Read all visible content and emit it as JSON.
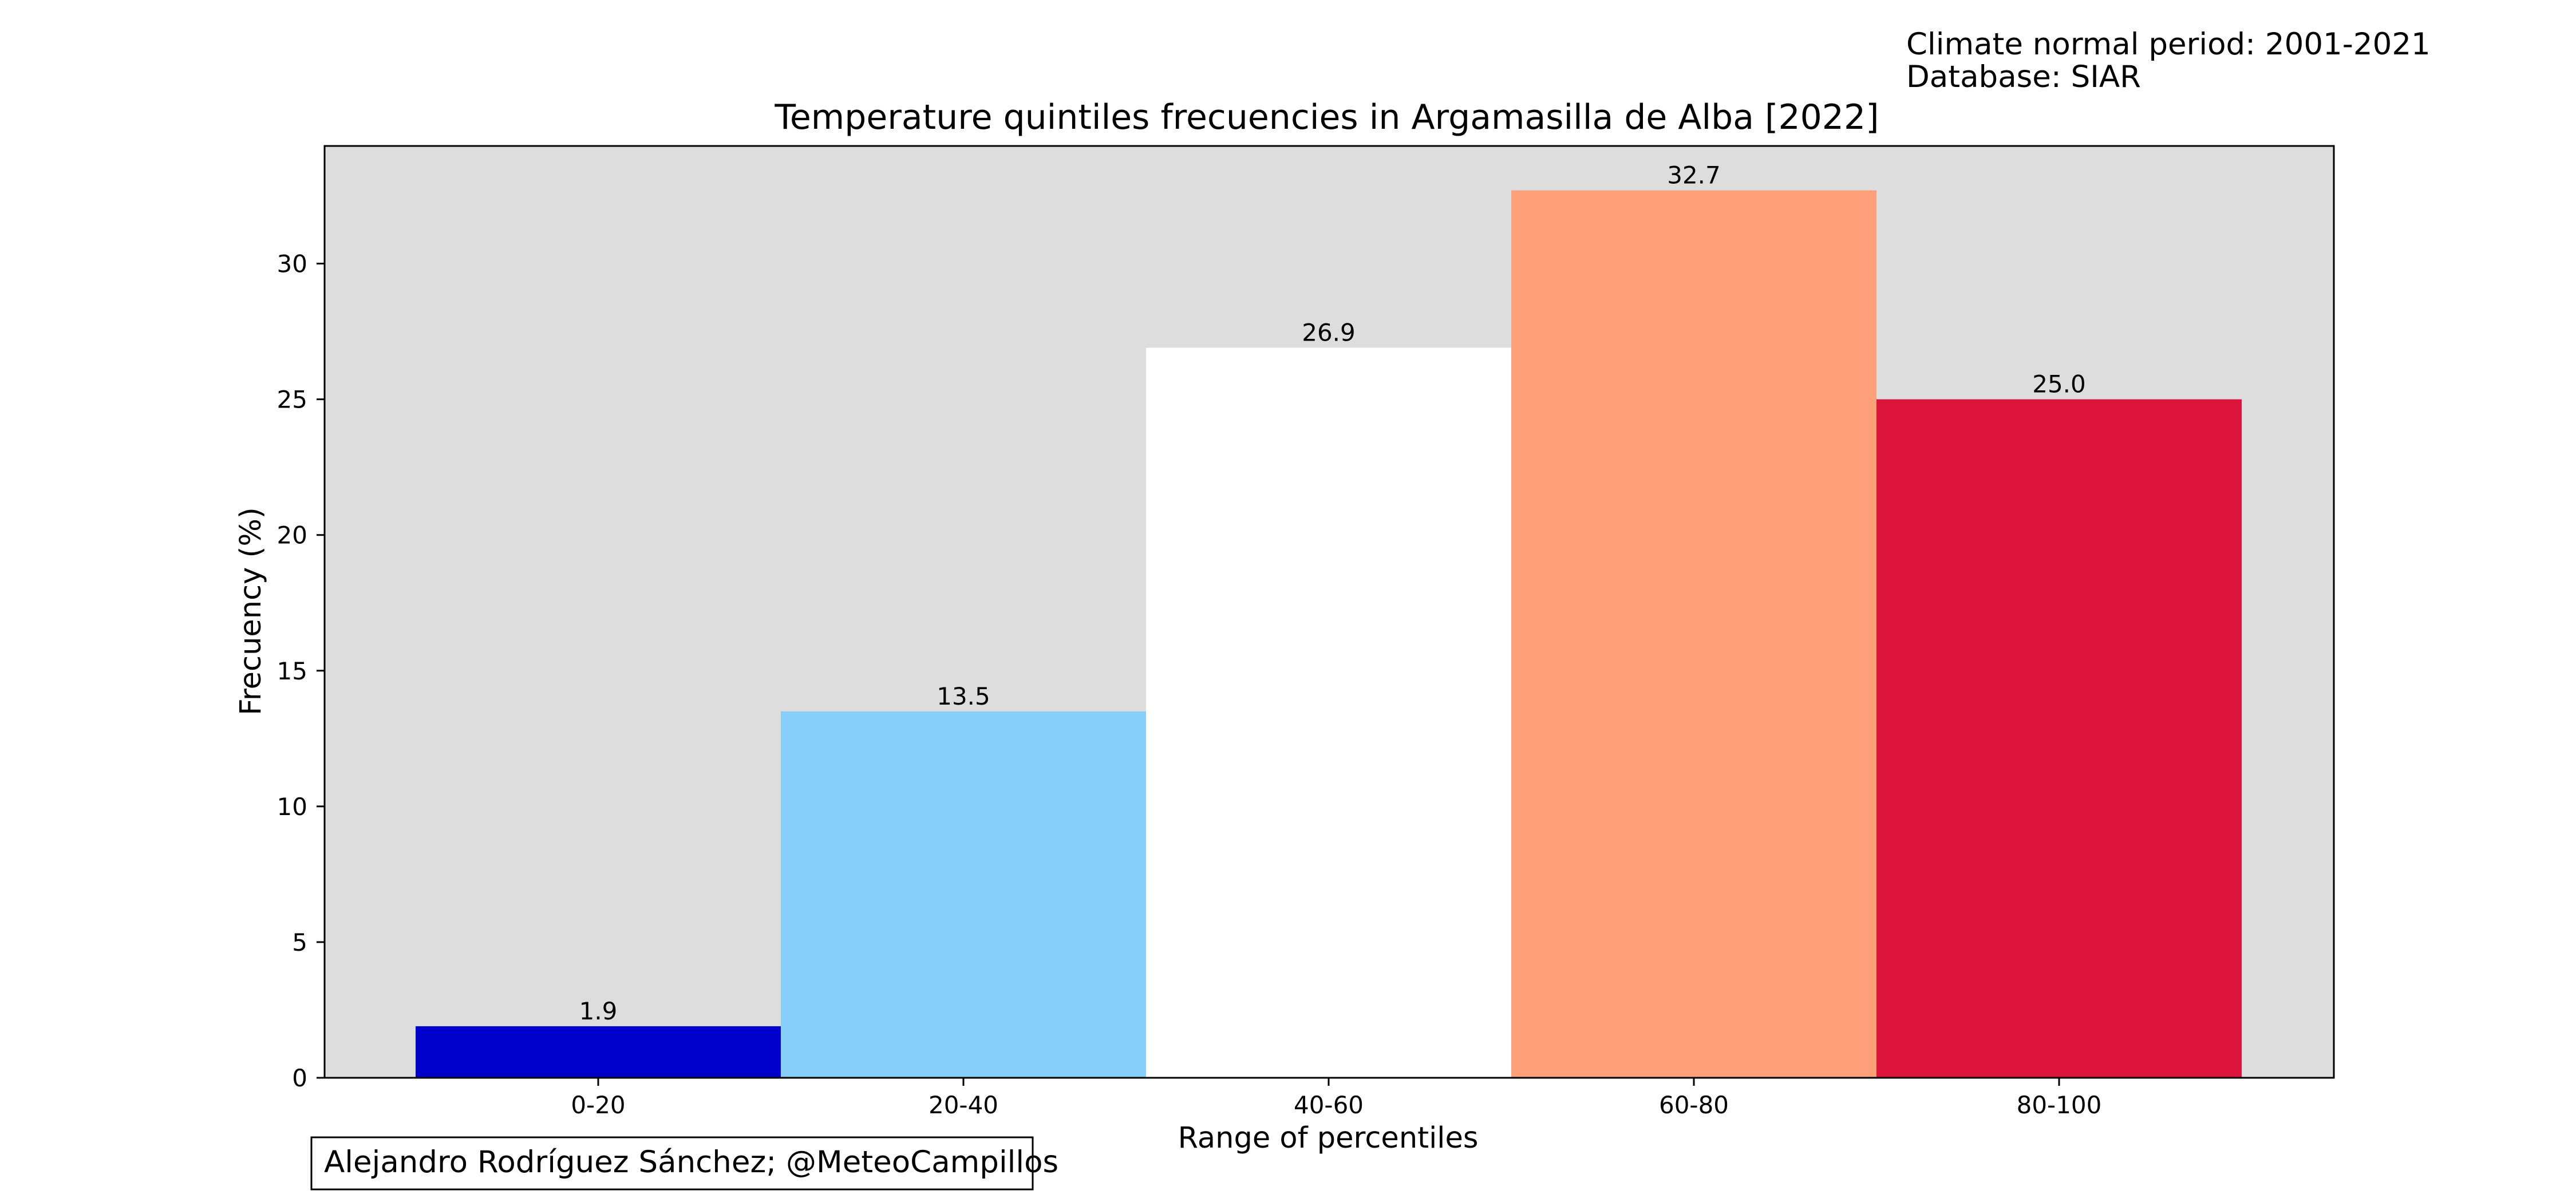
{
  "header": {
    "period_note": "Climate normal period: 2001-2021",
    "database_note": "Database: SIAR"
  },
  "credit": "Alejandro Rodríguez Sánchez; @MeteoCampillos",
  "chart_data": {
    "type": "bar",
    "title": "Temperature quintiles frecuencies in Argamasilla de Alba [2022]",
    "xlabel": "Range of percentiles",
    "ylabel": "Frecuency (%)",
    "categories": [
      "0-20",
      "20-40",
      "40-60",
      "60-80",
      "80-100"
    ],
    "values": [
      1.9,
      13.5,
      26.9,
      32.7,
      25.0
    ],
    "value_labels": [
      "1.9",
      "13.5",
      "26.9",
      "32.7",
      "25.0"
    ],
    "colors": [
      "#0000cd",
      "#87cefa",
      "#ffffff",
      "#ffa07a",
      "#dc143c"
    ],
    "ylim": [
      0,
      34.335
    ],
    "yticks": [
      0,
      5,
      10,
      15,
      20,
      25,
      30
    ],
    "plot_background": "#dddddd",
    "grid": false,
    "legend": "none"
  }
}
